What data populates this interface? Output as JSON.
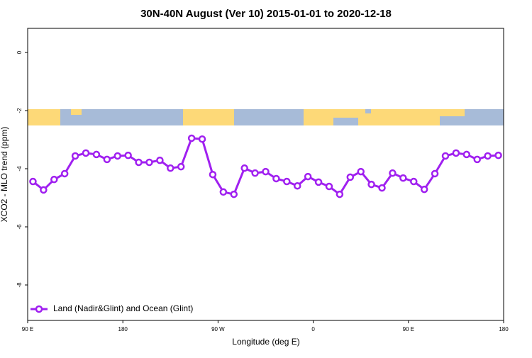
{
  "chart_data": {
    "type": "line",
    "title": "30N-40N August (Ver 10)   2015-01-01 to 2020-12-18",
    "x_label": "Longitude (deg E)",
    "y_label": "XCO2 - MLO trend (ppm)",
    "x": [
      95,
      105,
      115,
      125,
      135,
      145,
      155,
      165,
      175,
      185,
      195,
      205,
      215,
      225,
      235,
      245,
      255,
      265,
      275,
      285,
      295,
      305,
      315,
      325,
      335,
      345,
      355,
      365,
      375,
      385,
      395,
      405,
      415,
      425,
      435,
      445,
      455,
      465,
      475,
      485,
      495,
      505,
      515,
      525,
      535
    ],
    "series": [
      {
        "name": "Land (Nadir&Glint) and Ocean (Glint)",
        "color": "#a020f0",
        "values": [
          -4.44,
          -4.73,
          -4.37,
          -4.17,
          -3.56,
          -3.46,
          -3.51,
          -3.68,
          -3.56,
          -3.54,
          -3.78,
          -3.78,
          -3.71,
          -3.98,
          -3.93,
          -2.95,
          -2.98,
          -4.2,
          -4.8,
          -4.88,
          -3.98,
          -4.15,
          -4.1,
          -4.34,
          -4.44,
          -4.59,
          -4.27,
          -4.46,
          -4.61,
          -4.88,
          -4.29,
          -4.1,
          -4.54,
          -4.66,
          -4.15,
          -4.32,
          -4.44,
          -4.71,
          -4.17,
          -3.56,
          -3.46,
          -3.51,
          -3.68,
          -3.56,
          -3.54
        ]
      }
    ],
    "xlim": [
      90,
      540
    ],
    "xticks": [
      {
        "value": 90,
        "label": "90 E"
      },
      180,
      {
        "value": 270,
        "label": "90 W"
      },
      {
        "value": 360,
        "label": "0"
      },
      {
        "value": 450,
        "label": "90 E"
      },
      {
        "value": 540,
        "label": "180"
      }
    ],
    "ylim": [
      -9.22,
      0.83
    ],
    "yticks": [
      0,
      -2,
      -4,
      -6,
      -8
    ],
    "legend": "bottom-left"
  }
}
